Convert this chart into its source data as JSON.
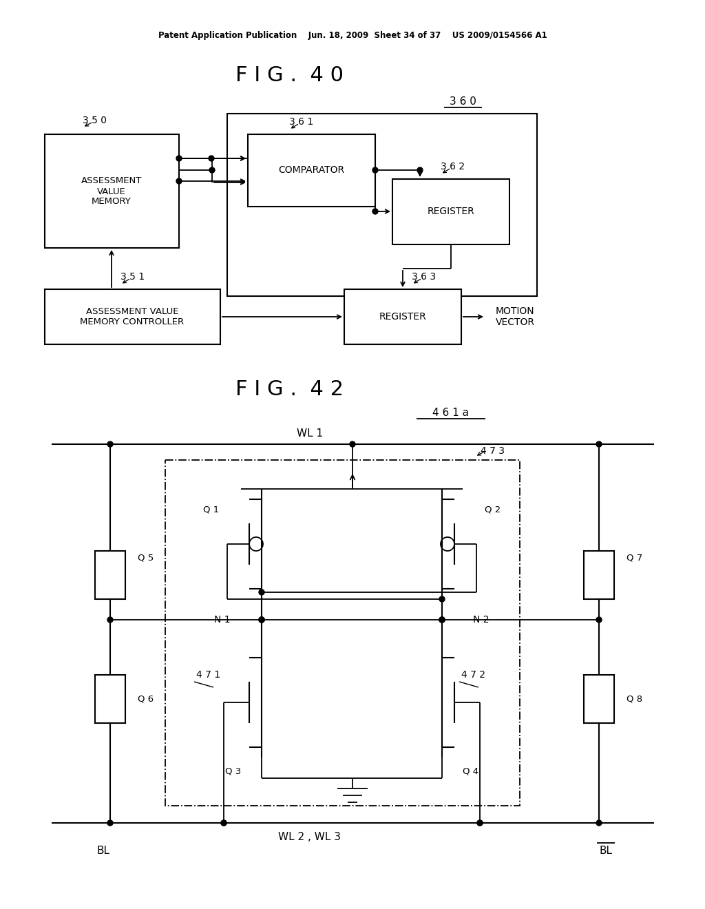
{
  "bg_color": "#ffffff",
  "fig_width": 10.24,
  "fig_height": 13.2,
  "header_text": "Patent Application Publication    Jun. 18, 2009  Sheet 34 of 37    US 2009/0154566 A1",
  "fig40_title": "F I G .  4 0",
  "fig42_title": "F I G .  4 2",
  "label_360": "3 6 0",
  "label_350": "3 5 0",
  "label_351": "3 5 1",
  "label_361": "3 6 1",
  "label_362": "3 6 2",
  "label_363": "3 6 3",
  "label_461a": "4 6 1 a",
  "label_473": "4 7 3",
  "label_471": "4 7 1",
  "label_472": "4 7 2",
  "box_350_text": "ASSESSMENT\nVALUE\nMEMORY",
  "box_351_text": "ASSESSMENT VALUE\nMEMORY CONTROLLER",
  "box_361_text": "COMPARATOR",
  "box_362_text": "REGISTER",
  "box_363_text": "REGISTER",
  "motion_vector_text": "MOTION\nVECTOR",
  "WL1_text": "WL 1",
  "WL23_text": "WL 2 , WL 3",
  "BL_text": "BL",
  "BLbar_text": "BL",
  "N1_text": "N 1",
  "N2_text": "N 2",
  "Q1_text": "Q 1",
  "Q2_text": "Q 2",
  "Q3_text": "Q 3",
  "Q4_text": "Q 4",
  "Q5_text": "Q 5",
  "Q6_text": "Q 6",
  "Q7_text": "Q 7",
  "Q8_text": "Q 8"
}
